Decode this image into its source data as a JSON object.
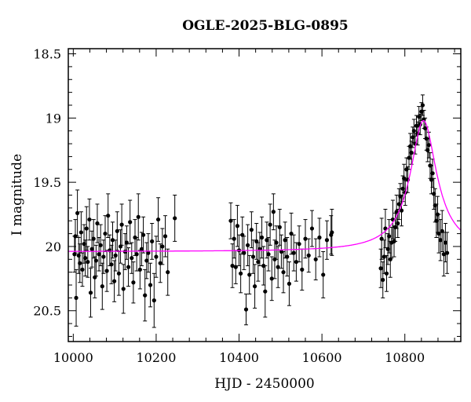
{
  "chart_data": {
    "type": "scatter",
    "title": "OGLE-2025-BLG-0895",
    "xlabel": "HJD - 2450000",
    "ylabel": "I magnitude",
    "xlim": [
      9988,
      10935
    ],
    "ylim": [
      20.74,
      18.46
    ],
    "y_inverted": true,
    "grid": false,
    "xticks": [
      {
        "v": 10000,
        "label": "10000"
      },
      {
        "v": 10200,
        "label": "10200"
      },
      {
        "v": 10400,
        "label": "10400"
      },
      {
        "v": 10600,
        "label": "10600"
      },
      {
        "v": 10800,
        "label": "10800"
      }
    ],
    "yticks": [
      {
        "v": 18.5,
        "label": "18.5"
      },
      {
        "v": 19.0,
        "label": "19"
      },
      {
        "v": 19.5,
        "label": "19.5"
      },
      {
        "v": 20.0,
        "label": "20"
      },
      {
        "v": 20.5,
        "label": "20.5"
      }
    ],
    "model": {
      "color": "#ff00ff",
      "baseline_mag": 20.04,
      "peak_mag": 19.02,
      "t0": 10845,
      "width_days": 31
    },
    "points": [
      [
        10003,
        20.06,
        0.14
      ],
      [
        10005,
        19.92,
        0.13
      ],
      [
        10007,
        20.4,
        0.22
      ],
      [
        10010,
        19.74,
        0.18
      ],
      [
        10013,
        20.07,
        0.14
      ],
      [
        10016,
        20.13,
        0.15
      ],
      [
        10019,
        19.89,
        0.16
      ],
      [
        10022,
        20.18,
        0.13
      ],
      [
        10026,
        19.98,
        0.15
      ],
      [
        10029,
        20.09,
        0.14
      ],
      [
        10032,
        19.86,
        0.17
      ],
      [
        10035,
        20.12,
        0.12
      ],
      [
        10039,
        19.79,
        0.16
      ],
      [
        10042,
        20.36,
        0.19
      ],
      [
        10045,
        20.02,
        0.14
      ],
      [
        10049,
        19.94,
        0.15
      ],
      [
        10052,
        20.24,
        0.16
      ],
      [
        10055,
        20.11,
        0.12
      ],
      [
        10058,
        19.82,
        0.15
      ],
      [
        10062,
        20.06,
        0.13
      ],
      [
        10066,
        19.99,
        0.16
      ],
      [
        10070,
        20.31,
        0.18
      ],
      [
        10073,
        20.08,
        0.13
      ],
      [
        10077,
        19.9,
        0.14
      ],
      [
        10081,
        20.19,
        0.16
      ],
      [
        10084,
        19.76,
        0.17
      ],
      [
        10088,
        20.03,
        0.12
      ],
      [
        10092,
        20.14,
        0.15
      ],
      [
        10095,
        19.95,
        0.14
      ],
      [
        10099,
        20.27,
        0.16
      ],
      [
        10102,
        20.07,
        0.12
      ],
      [
        10106,
        19.88,
        0.15
      ],
      [
        10110,
        20.21,
        0.17
      ],
      [
        10114,
        20.0,
        0.13
      ],
      [
        10117,
        19.83,
        0.16
      ],
      [
        10121,
        20.33,
        0.19
      ],
      [
        10125,
        20.04,
        0.14
      ],
      [
        10129,
        19.97,
        0.13
      ],
      [
        10133,
        20.16,
        0.15
      ],
      [
        10137,
        19.81,
        0.17
      ],
      [
        10141,
        20.09,
        0.12
      ],
      [
        10145,
        20.28,
        0.16
      ],
      [
        10149,
        19.93,
        0.14
      ],
      [
        10153,
        20.06,
        0.13
      ],
      [
        10157,
        19.77,
        0.18
      ],
      [
        10161,
        20.18,
        0.15
      ],
      [
        10165,
        20.02,
        0.13
      ],
      [
        10169,
        19.91,
        0.14
      ],
      [
        10173,
        20.38,
        0.2
      ],
      [
        10177,
        20.11,
        0.14
      ],
      [
        10181,
        20.05,
        0.15
      ],
      [
        10186,
        20.3,
        0.17
      ],
      [
        10190,
        19.96,
        0.14
      ],
      [
        10195,
        20.42,
        0.21
      ],
      [
        10200,
        20.08,
        0.16
      ],
      [
        10205,
        19.79,
        0.17
      ],
      [
        10210,
        20.13,
        0.15
      ],
      [
        10215,
        20.0,
        0.14
      ],
      [
        10222,
        19.92,
        0.16
      ],
      [
        10228,
        20.2,
        0.18
      ],
      [
        10245,
        19.78,
        0.18
      ],
      [
        10380,
        19.8,
        0.14
      ],
      [
        10384,
        20.15,
        0.17
      ],
      [
        10388,
        19.94,
        0.15
      ],
      [
        10392,
        20.16,
        0.13
      ],
      [
        10396,
        19.84,
        0.16
      ],
      [
        10400,
        20.03,
        0.12
      ],
      [
        10404,
        20.21,
        0.15
      ],
      [
        10408,
        19.91,
        0.14
      ],
      [
        10412,
        20.05,
        0.13
      ],
      [
        10417,
        20.49,
        0.12
      ],
      [
        10421,
        19.99,
        0.16
      ],
      [
        10425,
        20.22,
        0.15
      ],
      [
        10430,
        19.87,
        0.14
      ],
      [
        10434,
        20.08,
        0.13
      ],
      [
        10438,
        20.31,
        0.17
      ],
      [
        10442,
        19.96,
        0.14
      ],
      [
        10446,
        20.12,
        0.15
      ],
      [
        10450,
        20.02,
        0.13
      ],
      [
        10455,
        19.93,
        0.16
      ],
      [
        10459,
        20.15,
        0.15
      ],
      [
        10463,
        20.35,
        0.2
      ],
      [
        10467,
        19.95,
        0.14
      ],
      [
        10471,
        20.06,
        0.13
      ],
      [
        10475,
        19.83,
        0.16
      ],
      [
        10479,
        20.25,
        0.17
      ],
      [
        10483,
        19.73,
        0.14
      ],
      [
        10486,
        20.1,
        0.15
      ],
      [
        10490,
        19.97,
        0.13
      ],
      [
        10494,
        20.16,
        0.16
      ],
      [
        10498,
        19.85,
        0.14
      ],
      [
        10502,
        20.04,
        0.13
      ],
      [
        10507,
        20.2,
        0.16
      ],
      [
        10511,
        19.95,
        0.14
      ],
      [
        10516,
        20.08,
        0.15
      ],
      [
        10521,
        20.29,
        0.17
      ],
      [
        10526,
        19.9,
        0.16
      ],
      [
        10532,
        20.05,
        0.14
      ],
      [
        10538,
        20.12,
        0.15
      ],
      [
        10545,
        19.98,
        0.14
      ],
      [
        10552,
        20.18,
        0.16
      ],
      [
        10560,
        19.94,
        0.15
      ],
      [
        10568,
        20.07,
        0.13
      ],
      [
        10576,
        19.86,
        0.14
      ],
      [
        10585,
        20.1,
        0.16
      ],
      [
        10594,
        19.93,
        0.15
      ],
      [
        10603,
        20.22,
        0.18
      ],
      [
        10612,
        19.95,
        0.15
      ],
      [
        10622,
        19.91,
        0.15
      ],
      [
        10624,
        19.89,
        0.18
      ],
      [
        10742,
        20.17,
        0.15
      ],
      [
        10744,
        19.94,
        0.16
      ],
      [
        10747,
        20.26,
        0.14
      ],
      [
        10750,
        20.08,
        0.13
      ],
      [
        10753,
        19.86,
        0.15
      ],
      [
        10756,
        20.21,
        0.14
      ],
      [
        10759,
        20.02,
        0.12
      ],
      [
        10762,
        19.92,
        0.13
      ],
      [
        10765,
        20.1,
        0.14
      ],
      [
        10768,
        19.97,
        0.12
      ],
      [
        10771,
        19.79,
        0.15
      ],
      [
        10774,
        19.96,
        0.12
      ],
      [
        10777,
        19.85,
        0.11
      ],
      [
        10780,
        19.73,
        0.13
      ],
      [
        10783,
        19.82,
        0.11
      ],
      [
        10786,
        19.67,
        0.12
      ],
      [
        10789,
        19.61,
        0.1
      ],
      [
        10792,
        19.72,
        0.12
      ],
      [
        10795,
        19.55,
        0.1
      ],
      [
        10798,
        19.47,
        0.11
      ],
      [
        10801,
        19.58,
        0.1
      ],
      [
        10804,
        19.4,
        0.09
      ],
      [
        10807,
        19.48,
        0.1
      ],
      [
        10810,
        19.31,
        0.09
      ],
      [
        10813,
        19.22,
        0.1
      ],
      [
        10816,
        19.27,
        0.09
      ],
      [
        10819,
        19.15,
        0.08
      ],
      [
        10822,
        19.1,
        0.09
      ],
      [
        10825,
        19.2,
        0.08
      ],
      [
        10828,
        19.06,
        0.08
      ],
      [
        10831,
        19.12,
        0.09
      ],
      [
        10834,
        18.99,
        0.08
      ],
      [
        10837,
        19.05,
        0.08
      ],
      [
        10840,
        18.95,
        0.07
      ],
      [
        10843,
        18.9,
        0.08
      ],
      [
        10846,
        19.01,
        0.07
      ],
      [
        10849,
        19.08,
        0.08
      ],
      [
        10852,
        19.16,
        0.09
      ],
      [
        10855,
        19.25,
        0.09
      ],
      [
        10858,
        19.21,
        0.1
      ],
      [
        10861,
        19.37,
        0.1
      ],
      [
        10864,
        19.48,
        0.11
      ],
      [
        10867,
        19.43,
        0.11
      ],
      [
        10870,
        19.59,
        0.12
      ],
      [
        10873,
        19.68,
        0.13
      ],
      [
        10876,
        19.8,
        0.13
      ],
      [
        10879,
        19.75,
        0.14
      ],
      [
        10882,
        19.9,
        0.15
      ],
      [
        10886,
        19.95,
        0.16
      ],
      [
        10890,
        19.88,
        0.16
      ],
      [
        10894,
        20.06,
        0.17
      ],
      [
        10898,
        19.97,
        0.15
      ],
      [
        10902,
        20.05,
        0.16
      ]
    ]
  }
}
